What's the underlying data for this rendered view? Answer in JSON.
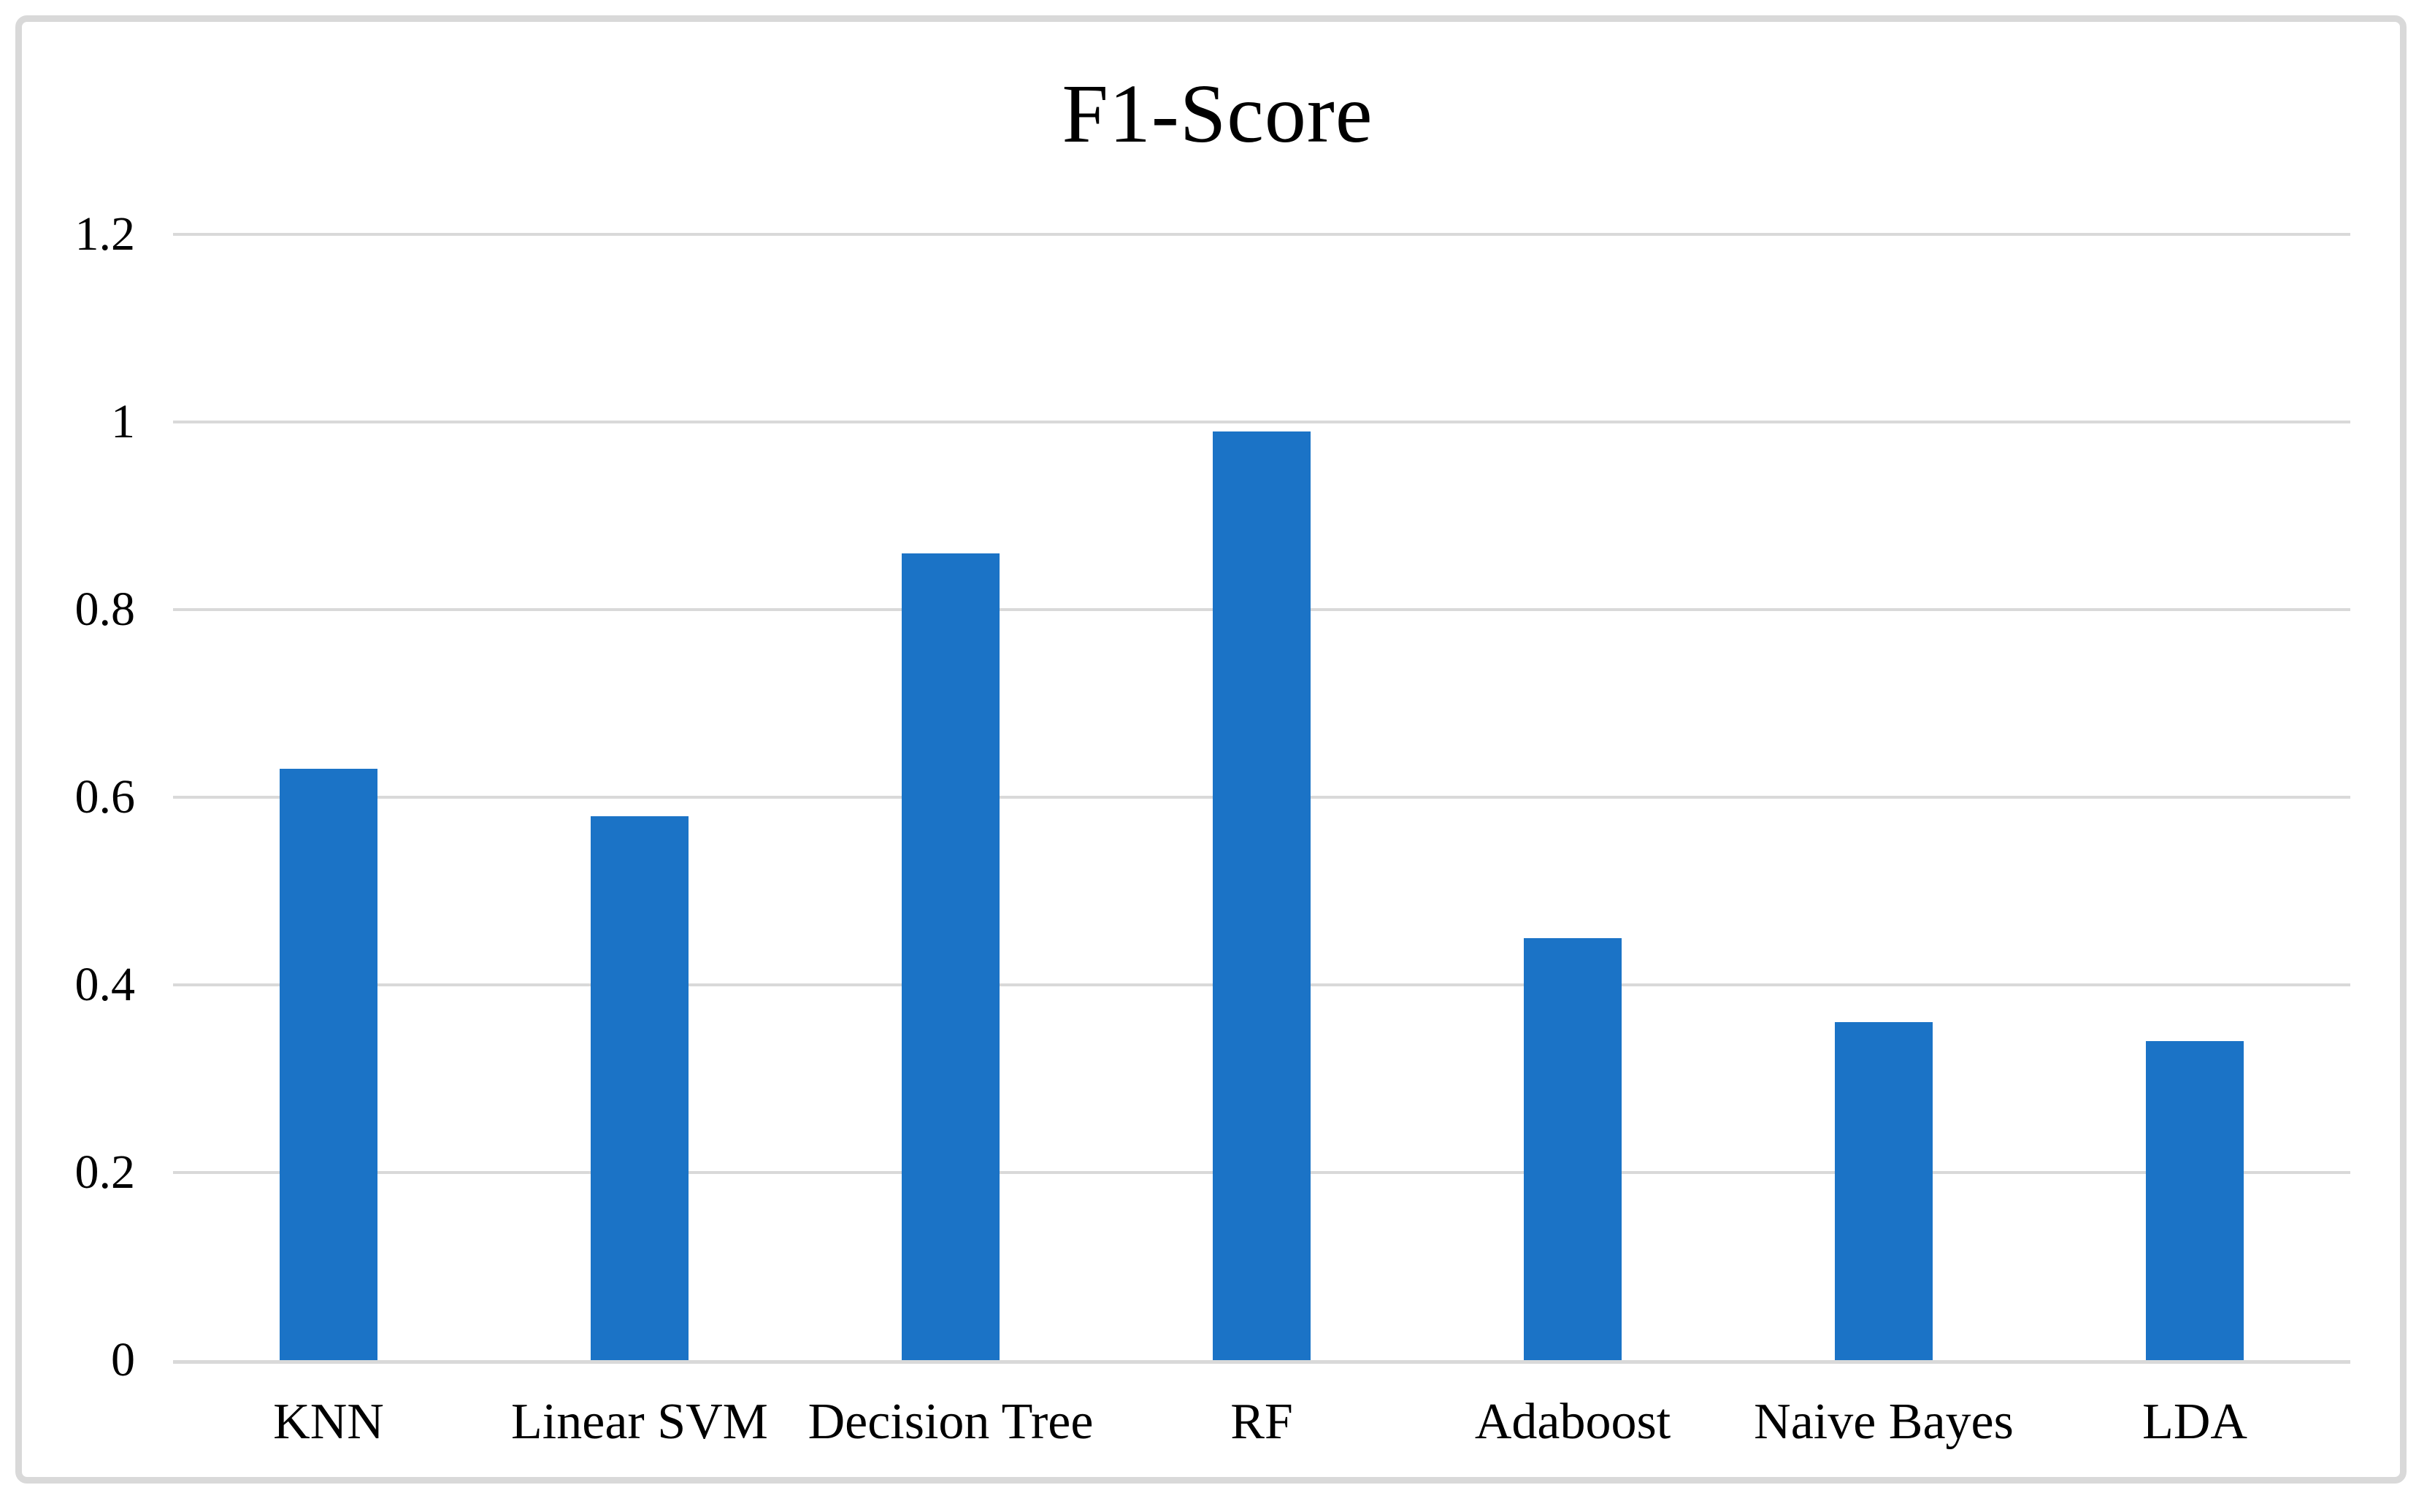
{
  "chart_data": {
    "type": "bar",
    "title": "F1-Score",
    "categories": [
      "KNN",
      "Linear SVM",
      "Decision Tree",
      "RF",
      "Adaboost",
      "Naive Bayes",
      "LDA"
    ],
    "values": [
      0.63,
      0.58,
      0.86,
      0.99,
      0.45,
      0.36,
      0.34
    ],
    "xlabel": "",
    "ylabel": "",
    "ylim": [
      0,
      1.2
    ],
    "ytick_step": 0.2,
    "ytick_labels": [
      "0",
      "0.2",
      "0.4",
      "0.6",
      "0.8",
      "1",
      "1.2"
    ],
    "grid": true,
    "legend_position": "none",
    "colors": {
      "bar": "#1b73c6",
      "gridline": "#d9d9d9",
      "axis_line": "#d9d9d9",
      "frame_border": "#d9d9d9",
      "text": "#000000",
      "background": "#ffffff"
    }
  }
}
